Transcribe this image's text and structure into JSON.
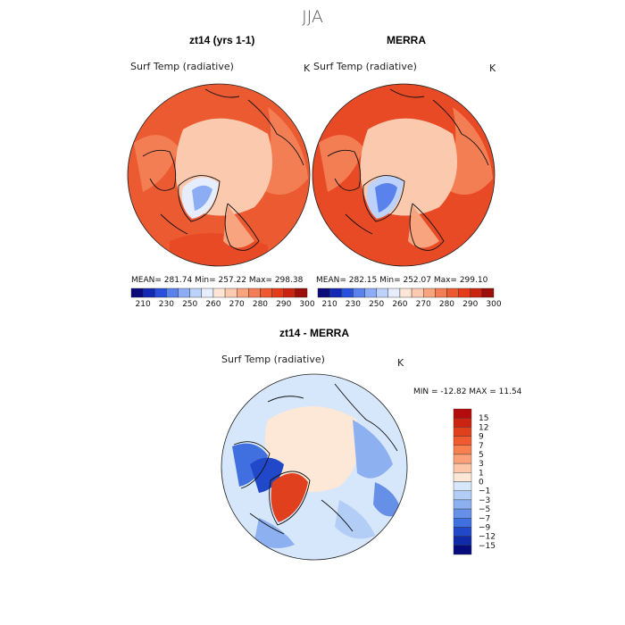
{
  "season": "JJA",
  "units": "K",
  "top_panels": [
    {
      "title": "zt14 (yrs 1-1)",
      "variable": "Surf Temp (radiative)",
      "units": "K",
      "mean": "281.74",
      "min": "257.22",
      "max": "298.38",
      "stats_text": "MEAN= 281.74   Min= 257.22   Max= 298.38"
    },
    {
      "title": "MERRA",
      "variable": "Surf Temp (radiative)",
      "units": "K",
      "mean": "282.15",
      "min": "252.07",
      "max": "299.10",
      "stats_text": "MEAN= 282.15   Min= 252.07   Max= 299.10"
    }
  ],
  "colorbar_top": {
    "labels": [
      "210",
      "230",
      "250",
      "260",
      "270",
      "280",
      "290",
      "300"
    ],
    "colors": [
      "#0a0a7a",
      "#1428b4",
      "#2850dc",
      "#5a82ec",
      "#8cacf4",
      "#bcd2fa",
      "#e6eefd",
      "#fde6d6",
      "#fccab0",
      "#f8a47e",
      "#f47e54",
      "#ee5a30",
      "#e43c1a",
      "#c82410",
      "#9c0e08"
    ]
  },
  "diff_panel": {
    "title": "zt14 - MERRA",
    "variable": "Surf Temp (radiative)",
    "units": "K",
    "min": "-12.82",
    "max": "11.54",
    "stats_text": "MIN = -12.82  MAX =  11.54"
  },
  "colorbar_diff": {
    "labels": [
      "15",
      "12",
      "9",
      "7",
      "5",
      "3",
      "1",
      "0",
      "−1",
      "−3",
      "−5",
      "−7",
      "−9",
      "−12",
      "−15"
    ],
    "colors": [
      "#b40c0c",
      "#cc2412",
      "#e0401e",
      "#f05a2e",
      "#f88050",
      "#fca07a",
      "#fdc6a8",
      "#fde8d8",
      "#d6e6fb",
      "#b2cdf6",
      "#8cb0f0",
      "#6690e8",
      "#4070e0",
      "#2048c8",
      "#102aa8",
      "#060c7c"
    ]
  },
  "map_colors": {
    "ocean_warm": "#ec5a32",
    "ocean_warmer": "#e84a26",
    "land_mid": "#f47e54",
    "arctic_light": "#fbc9ae",
    "greenland_blue": "#8cacf4",
    "diff_bg": "#d6e6fb",
    "diff_neutral": "#fde8d8",
    "diff_red": "#e0401e",
    "diff_blue": "#4070e0"
  }
}
